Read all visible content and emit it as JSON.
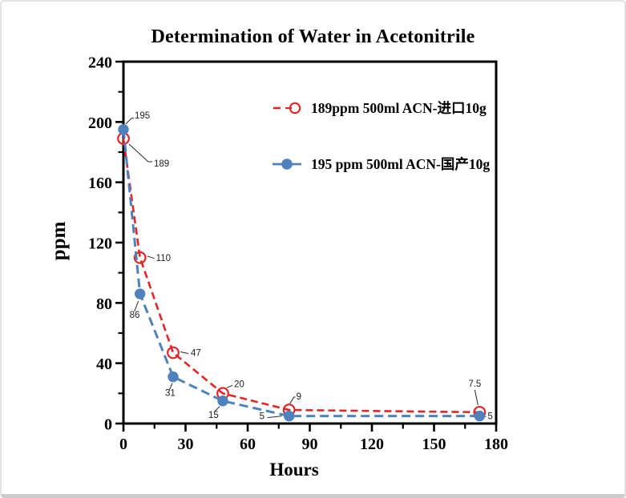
{
  "chart_data": {
    "type": "line",
    "title": "Determination of Water in Acetonitrile",
    "xlabel": "Hours",
    "ylabel": "ppm",
    "xlim": [
      0,
      180
    ],
    "ylim": [
      0,
      240
    ],
    "x_major_ticks": [
      0,
      30,
      60,
      90,
      120,
      150,
      180
    ],
    "x_minor_step": 15,
    "y_major_ticks": [
      0,
      40,
      80,
      120,
      160,
      200,
      240
    ],
    "y_minor_step": 20,
    "grid": false,
    "legend_position": "inside-top-right",
    "frame": "full-box",
    "x": [
      0,
      8,
      24,
      48,
      80,
      172
    ],
    "series": [
      {
        "name": "189ppm  500ml ACN-进口10g",
        "color": "#e42528",
        "line_style": "dashed",
        "marker": "open-circle",
        "values": [
          189,
          110,
          47,
          20,
          9,
          7.5
        ],
        "point_labels": [
          {
            "text": "189",
            "dx": 38,
            "dy": 35,
            "anchor": "start",
            "leader": [
              [
                7,
                7
              ],
              [
                31,
                29
              ],
              [
                36,
                29
              ]
            ]
          },
          {
            "text": "110",
            "dx": 20,
            "dy": 4,
            "anchor": "start",
            "leader": [
              [
                9,
                -2
              ],
              [
                18,
                1
              ]
            ]
          },
          {
            "text": "47",
            "dx": 22,
            "dy": 4,
            "anchor": "start",
            "leader": [
              [
                9,
                -1
              ],
              [
                19,
                1
              ]
            ]
          },
          {
            "text": "20",
            "dx": 14,
            "dy": -8,
            "anchor": "start",
            "leader": [
              [
                5,
                -7
              ],
              [
                12,
                -10
              ]
            ]
          },
          {
            "text": "9",
            "dx": 9,
            "dy": -13,
            "anchor": "start",
            "leader": [
              [
                1,
                -8
              ],
              [
                6,
                -16
              ],
              [
                8,
                -16
              ]
            ]
          },
          {
            "text": "7.5",
            "dx": -6,
            "dy": -32,
            "anchor": "middle",
            "leader": [
              [
                -2,
                -9
              ],
              [
                -6,
                -28
              ]
            ]
          }
        ]
      },
      {
        "name": "195 ppm 500ml ACN-国产10g",
        "color": "#4f81bd",
        "line_style": "dashed",
        "marker": "filled-circle",
        "values": [
          195,
          86,
          31,
          15,
          5,
          5
        ],
        "point_labels": [
          {
            "text": "195",
            "dx": 14,
            "dy": -14,
            "anchor": "start",
            "leader": [
              [
                3,
                -7
              ],
              [
                10,
                -14
              ],
              [
                13,
                -14
              ]
            ]
          },
          {
            "text": "86",
            "dx": -13,
            "dy": 30,
            "anchor": "start",
            "leader": [
              [
                -2,
                9
              ],
              [
                -7,
                22
              ]
            ]
          },
          {
            "text": "31",
            "dx": -10,
            "dy": 24,
            "anchor": "start",
            "leader": [
              [
                -1,
                8
              ],
              [
                -5,
                17
              ]
            ]
          },
          {
            "text": "15",
            "dx": -18,
            "dy": 21,
            "anchor": "start",
            "leader": [
              [
                -4,
                7
              ],
              [
                -11,
                14
              ]
            ]
          },
          {
            "text": "5",
            "dx": -37,
            "dy": 4,
            "anchor": "start",
            "leader": [
              [
                -9,
                0
              ],
              [
                -27,
                2
              ]
            ]
          },
          {
            "text": "5",
            "dx": 10,
            "dy": 4,
            "anchor": "start",
            "leader": [
              [
                6,
                0
              ],
              [
                8,
                1
              ]
            ]
          }
        ]
      }
    ]
  }
}
